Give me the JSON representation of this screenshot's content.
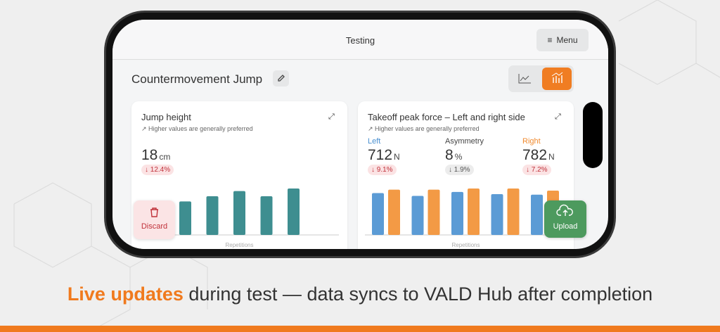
{
  "header": {
    "title": "Testing",
    "menu": "Menu"
  },
  "page_title": "Countermovement Jump",
  "cards": [
    {
      "title": "Jump height",
      "hint": "Higher values are generally preferred",
      "metrics": [
        {
          "value": "18",
          "unit": "cm",
          "change": "12.4%"
        }
      ],
      "series": [
        {
          "color": "#3e8e90",
          "values": [
            13,
            15,
            17,
            15,
            18
          ]
        }
      ],
      "axis_label": "Repetitions"
    },
    {
      "title": "Takeoff peak force – Left and right side",
      "hint": "Higher values are generally preferred",
      "metrics": [
        {
          "label": "Left",
          "value": "712",
          "unit": "N",
          "change": "9.1%"
        },
        {
          "label": "Asymmetry",
          "value": "8",
          "unit": "%",
          "change": "1.9%"
        },
        {
          "label": "Right",
          "value": "782",
          "unit": "N",
          "change": "7.2%"
        }
      ],
      "series": [
        {
          "color": "#5b9bd5",
          "values": [
            740,
            690,
            760,
            720,
            712
          ]
        },
        {
          "color": "#f39a45",
          "values": [
            800,
            800,
            820,
            820,
            782
          ]
        }
      ],
      "axis_label": "Repetitions"
    }
  ],
  "buttons": {
    "discard": "Discard",
    "upload": "Upload"
  },
  "caption": {
    "highlight": "Live updates",
    "rest": " during test — data syncs to VALD Hub after completion"
  }
}
